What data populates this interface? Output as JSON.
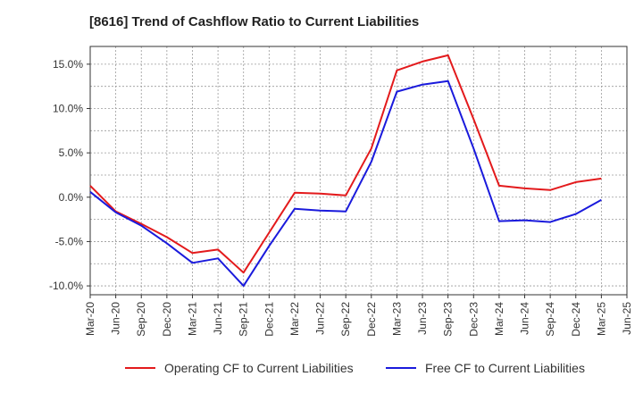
{
  "chart_data": {
    "type": "line",
    "title": "[8616]  Trend of Cashflow Ratio to Current Liabilities",
    "categories": [
      "Mar-20",
      "Jun-20",
      "Sep-20",
      "Dec-20",
      "Mar-21",
      "Jun-21",
      "Sep-21",
      "Dec-21",
      "Mar-22",
      "Jun-22",
      "Sep-22",
      "Dec-22",
      "Mar-23",
      "Jun-23",
      "Sep-23",
      "Dec-23",
      "Mar-24",
      "Jun-24",
      "Sep-24",
      "Dec-24",
      "Mar-25",
      "Jun-25"
    ],
    "y_ticks": [
      "15.0%",
      "10.0%",
      "5.0%",
      "0.0%",
      "-5.0%",
      "-10.0%"
    ],
    "y_tick_values": [
      15,
      10,
      5,
      0,
      -5,
      -10
    ],
    "ylim": [
      -11,
      17
    ],
    "grid": true,
    "legend_position": "bottom",
    "series": [
      {
        "name": "Operating CF to Current Liabilities",
        "color": "#e31a1c",
        "values": [
          1.3,
          -1.6,
          -3.0,
          -4.5,
          -6.3,
          -5.9,
          -8.5,
          -4.0,
          0.5,
          0.4,
          0.2,
          5.5,
          14.3,
          15.3,
          16.0,
          8.8,
          1.3,
          1.0,
          0.8,
          1.7,
          2.1,
          null
        ]
      },
      {
        "name": "Free CF to Current Liabilities",
        "color": "#1a1adc",
        "values": [
          0.6,
          -1.7,
          -3.2,
          -5.2,
          -7.4,
          -6.9,
          -10.0,
          -5.5,
          -1.3,
          -1.5,
          -1.6,
          4.0,
          11.9,
          12.7,
          13.1,
          5.5,
          -2.7,
          -2.6,
          -2.8,
          -1.9,
          -0.3,
          null
        ]
      }
    ]
  }
}
